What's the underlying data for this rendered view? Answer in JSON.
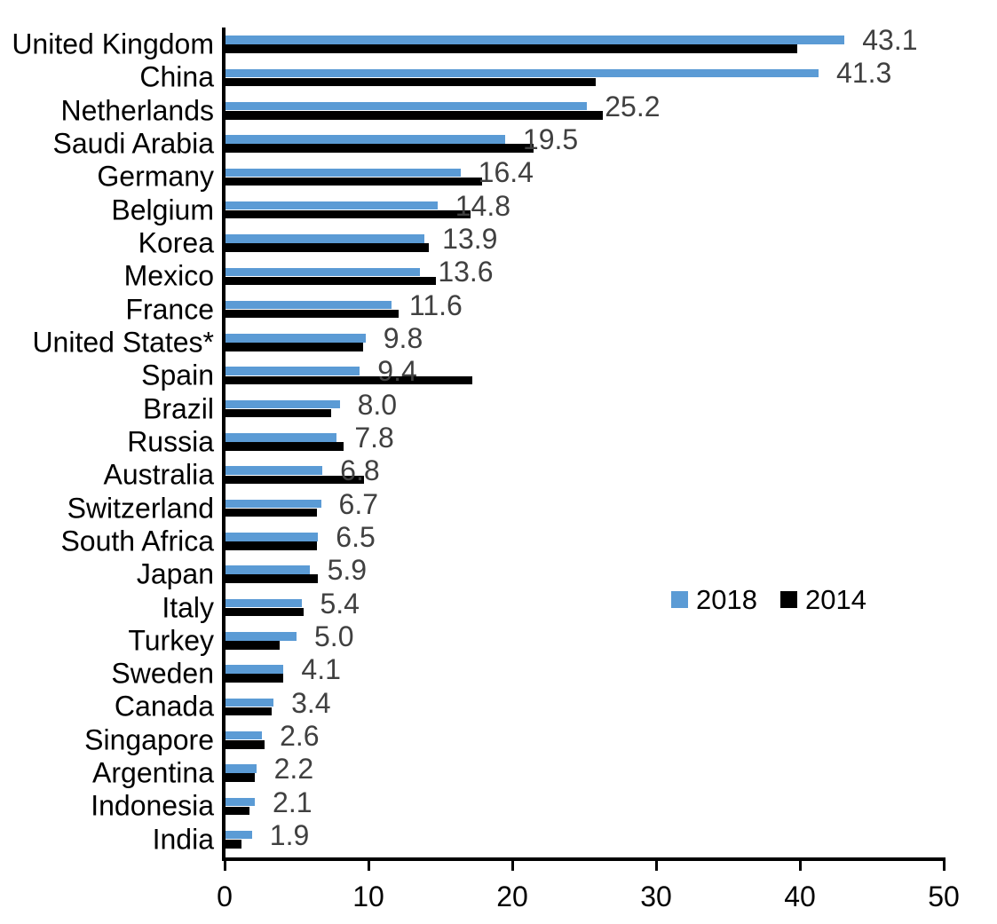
{
  "chart_data": {
    "type": "bar",
    "orientation": "horizontal",
    "title": "",
    "xlabel": "",
    "ylabel": "",
    "xlim": [
      0,
      50
    ],
    "x_ticks": [
      0,
      10,
      20,
      30,
      40,
      50
    ],
    "x_tick_labels": [
      "0",
      "10",
      "20",
      "30",
      "40",
      "50"
    ],
    "grid": false,
    "legend_position": "middle-right",
    "categories": [
      "United Kingdom",
      "China",
      "Netherlands",
      "Saudi Arabia",
      "Germany",
      "Belgium",
      "Korea",
      "Mexico",
      "France",
      "United States*",
      "Spain",
      "Brazil",
      "Russia",
      "Australia",
      "Switzerland",
      "South Africa",
      "Japan",
      "Italy",
      "Turkey",
      "Sweden",
      "Canada",
      "Singapore",
      "Argentina",
      "Indonesia",
      "India"
    ],
    "series": [
      {
        "name": "2018",
        "color": "#5B9BD5",
        "values": [
          43.1,
          41.3,
          25.2,
          19.5,
          16.4,
          14.8,
          13.9,
          13.6,
          11.6,
          9.8,
          9.4,
          8.0,
          7.8,
          6.8,
          6.7,
          6.5,
          5.9,
          5.4,
          5.0,
          4.1,
          3.4,
          2.6,
          2.2,
          2.1,
          1.9
        ]
      },
      {
        "name": "2014",
        "color": "#000000",
        "values": [
          39.8,
          25.8,
          26.3,
          21.5,
          17.9,
          17.1,
          14.2,
          14.7,
          12.1,
          9.6,
          17.2,
          7.4,
          8.3,
          9.7,
          6.4,
          6.4,
          6.5,
          5.5,
          3.8,
          4.1,
          3.3,
          2.8,
          2.1,
          1.7,
          1.2
        ]
      }
    ],
    "data_labels": {
      "series": "2018",
      "color": "#404040",
      "texts": [
        "43.1",
        "41.3",
        "25.2",
        "19.5",
        "16.4",
        "14.8",
        "13.9",
        "13.6",
        "11.6",
        "9.8",
        "9.4",
        "8.0",
        "7.8",
        "6.8",
        "6.7",
        "6.5",
        "5.9",
        "5.4",
        "5.0",
        "4.1",
        "3.4",
        "2.6",
        "2.2",
        "2.1",
        "1.9"
      ]
    }
  },
  "legend": {
    "items": [
      {
        "label": "2018",
        "color": "#5B9BD5"
      },
      {
        "label": "2014",
        "color": "#000000"
      }
    ]
  }
}
